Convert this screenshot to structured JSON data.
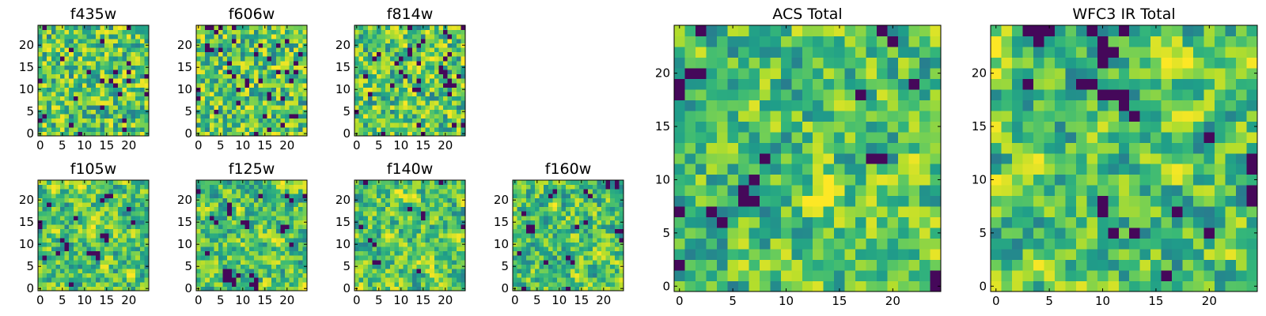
{
  "chart_data": [
    {
      "type": "heatmap",
      "title": "f435w",
      "xticks": [
        0,
        5,
        10,
        15,
        20
      ],
      "yticks": [
        0,
        5,
        10,
        15,
        20
      ],
      "xlim": [
        -0.5,
        24.5
      ],
      "ylim": [
        -0.5,
        24.5
      ],
      "grid": false,
      "colormap": "viridis",
      "z": "25x25 pixel noise (values not readable individually)"
    },
    {
      "type": "heatmap",
      "title": "f606w",
      "xticks": [
        0,
        5,
        10,
        15,
        20
      ],
      "yticks": [
        0,
        5,
        10,
        15,
        20
      ],
      "xlim": [
        -0.5,
        24.5
      ],
      "ylim": [
        -0.5,
        24.5
      ],
      "grid": false,
      "colormap": "viridis",
      "z": "25x25 pixel noise (values not readable individually)"
    },
    {
      "type": "heatmap",
      "title": "f814w",
      "xticks": [
        0,
        5,
        10,
        15,
        20
      ],
      "yticks": [
        0,
        5,
        10,
        15,
        20
      ],
      "xlim": [
        -0.5,
        24.5
      ],
      "ylim": [
        -0.5,
        24.5
      ],
      "grid": false,
      "colormap": "viridis",
      "z": "25x25 pixel noise (values not readable individually)"
    },
    {
      "type": "heatmap",
      "title": "f105w",
      "xticks": [
        0,
        5,
        10,
        15,
        20
      ],
      "yticks": [
        0,
        5,
        10,
        15,
        20
      ],
      "xlim": [
        -0.5,
        24.5
      ],
      "ylim": [
        -0.5,
        24.5
      ],
      "grid": false,
      "colormap": "viridis",
      "z": "25x25 pixel noise (values not readable individually)"
    },
    {
      "type": "heatmap",
      "title": "f125w",
      "xticks": [
        0,
        5,
        10,
        15,
        20
      ],
      "yticks": [
        0,
        5,
        10,
        15,
        20
      ],
      "xlim": [
        -0.5,
        24.5
      ],
      "ylim": [
        -0.5,
        24.5
      ],
      "grid": false,
      "colormap": "viridis",
      "z": "25x25 pixel noise (values not readable individually)"
    },
    {
      "type": "heatmap",
      "title": "f140w",
      "xticks": [
        0,
        5,
        10,
        15,
        20
      ],
      "yticks": [
        0,
        5,
        10,
        15,
        20
      ],
      "xlim": [
        -0.5,
        24.5
      ],
      "ylim": [
        -0.5,
        24.5
      ],
      "grid": false,
      "colormap": "viridis",
      "z": "25x25 pixel noise (values not readable individually)"
    },
    {
      "type": "heatmap",
      "title": "f160w",
      "xticks": [
        0,
        5,
        10,
        15,
        20
      ],
      "yticks": [
        0,
        5,
        10,
        15,
        20
      ],
      "xlim": [
        -0.5,
        24.5
      ],
      "ylim": [
        -0.5,
        24.5
      ],
      "grid": false,
      "colormap": "viridis",
      "z": "25x25 pixel noise (values not readable individually)"
    },
    {
      "type": "heatmap",
      "title": "ACS Total",
      "xticks": [
        0,
        5,
        10,
        15,
        20
      ],
      "yticks": [
        0,
        5,
        10,
        15,
        20
      ],
      "xlim": [
        -0.5,
        24.5
      ],
      "ylim": [
        -0.5,
        24.5
      ],
      "grid": false,
      "colormap": "viridis",
      "z": "25x25 pixel noise (values not readable individually)"
    },
    {
      "type": "heatmap",
      "title": "WFC3 IR Total",
      "xticks": [
        0,
        5,
        10,
        15,
        20
      ],
      "yticks": [
        0,
        5,
        10,
        15,
        20
      ],
      "xlim": [
        -0.5,
        24.5
      ],
      "ylim": [
        -0.5,
        24.5
      ],
      "grid": false,
      "colormap": "viridis",
      "z": "25x25 pixel noise (values not readable individually)"
    }
  ]
}
